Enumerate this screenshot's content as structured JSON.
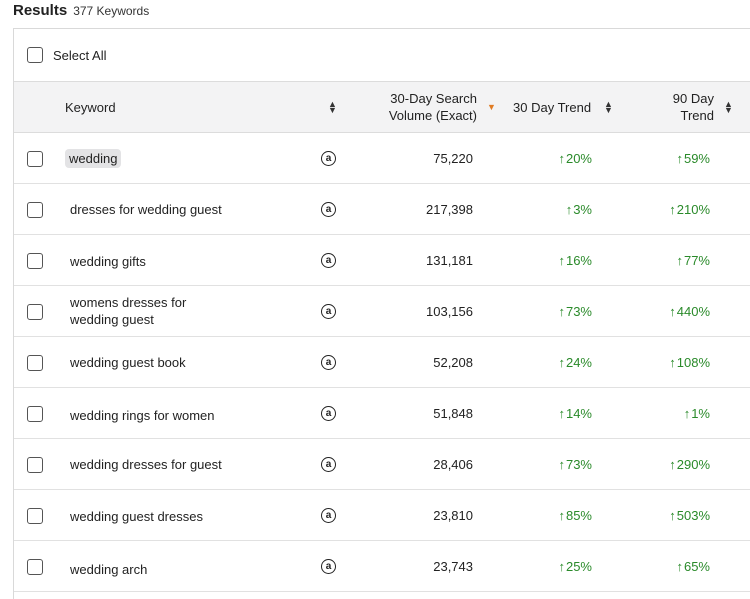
{
  "results": {
    "title": "Results",
    "count": "377 Keywords"
  },
  "select_all": {
    "label": "Select All"
  },
  "columns": {
    "keyword": "Keyword",
    "volume_line1": "30-Day Search",
    "volume_line2": "Volume (Exact)",
    "trend30": "30 Day Trend",
    "trend90_line1": "90 Day",
    "trend90_line2": "Trend"
  },
  "icons": {
    "sort": "sort-icon",
    "sort_active": "sort-desc-icon",
    "amazon": "amazon-icon",
    "trend": "arrow-up-icon"
  },
  "colors": {
    "trend": "#2a8a2a",
    "sort_active": "#e07b22",
    "header_bg": "#f3f3f4"
  },
  "rows": [
    {
      "keyword": "wedding",
      "volume": "75,220",
      "trend30": "20%",
      "trend90": "59%"
    },
    {
      "keyword": "dresses for wedding guest",
      "volume": "217,398",
      "trend30": "3%",
      "trend90": "210%"
    },
    {
      "keyword": "wedding gifts",
      "volume": "131,181",
      "trend30": "16%",
      "trend90": "77%"
    },
    {
      "keyword": "womens dresses for",
      "keyword2": "wedding guest",
      "volume": "103,156",
      "trend30": "73%",
      "trend90": "440%"
    },
    {
      "keyword": "wedding guest book",
      "volume": "52,208",
      "trend30": "24%",
      "trend90": "108%"
    },
    {
      "keyword": "wedding rings for women",
      "volume": "51,848",
      "trend30": "14%",
      "trend90": "1%"
    },
    {
      "keyword": "wedding dresses for guest",
      "volume": "28,406",
      "trend30": "73%",
      "trend90": "290%"
    },
    {
      "keyword": "wedding guest dresses",
      "volume": "23,810",
      "trend30": "85%",
      "trend90": "503%"
    },
    {
      "keyword": "wedding arch",
      "volume": "23,743",
      "trend30": "25%",
      "trend90": "65%"
    }
  ]
}
